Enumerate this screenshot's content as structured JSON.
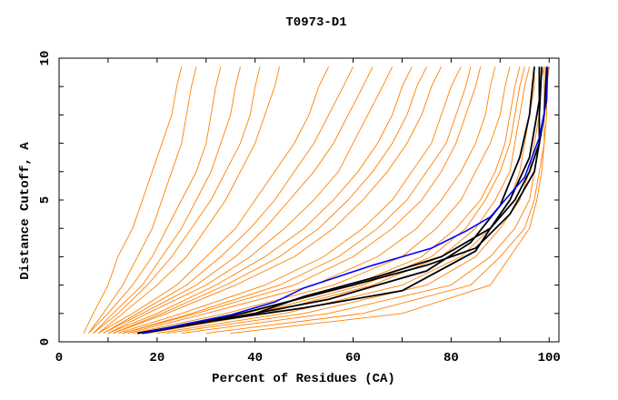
{
  "chart_data": {
    "type": "line",
    "title": "T0973-D1",
    "xlabel": "Percent of Residues (CA)",
    "ylabel": "Distance Cutoff, A",
    "xlim": [
      0,
      102
    ],
    "ylim": [
      0,
      10
    ],
    "x_ticks": [
      "0",
      "20",
      "40",
      "60",
      "80",
      "100"
    ],
    "y_ticks": [
      "0",
      "5",
      "10"
    ],
    "grid": false,
    "legend": "none",
    "colors": {
      "models": "#ff8000",
      "highlight_blue": "#0000ff",
      "highlight_black": "#000000"
    },
    "orange_y_levels": [
      0.3,
      1,
      2,
      3,
      4,
      5,
      6,
      7,
      8,
      9,
      9.7
    ],
    "orange_series_x": [
      [
        5,
        7,
        10,
        12,
        15,
        17,
        19,
        21,
        23,
        24,
        25
      ],
      [
        6,
        9,
        13,
        16,
        19,
        21,
        23,
        25,
        26,
        27,
        28
      ],
      [
        7,
        11,
        17,
        21,
        25,
        28,
        31,
        33,
        35,
        36,
        37
      ],
      [
        8,
        13,
        20,
        26,
        30,
        34,
        37,
        40,
        42,
        44,
        45
      ],
      [
        8,
        15,
        24,
        30,
        36,
        40,
        44,
        48,
        51,
        53,
        55
      ],
      [
        9,
        17,
        28,
        36,
        42,
        47,
        52,
        56,
        59,
        62,
        64
      ],
      [
        10,
        20,
        32,
        42,
        50,
        56,
        61,
        65,
        68,
        70,
        72
      ],
      [
        11,
        22,
        36,
        48,
        56,
        62,
        67,
        71,
        74,
        76,
        78
      ],
      [
        12,
        25,
        42,
        54,
        62,
        68,
        72,
        76,
        78,
        80,
        82
      ],
      [
        13,
        28,
        48,
        60,
        68,
        74,
        78,
        81,
        83,
        85,
        86
      ],
      [
        14,
        30,
        52,
        65,
        73,
        78,
        82,
        85,
        87,
        88,
        89
      ],
      [
        15,
        34,
        56,
        70,
        77,
        82,
        85,
        88,
        90,
        91,
        92
      ],
      [
        16,
        38,
        60,
        74,
        81,
        86,
        89,
        91,
        92,
        93,
        94
      ],
      [
        18,
        42,
        64,
        78,
        85,
        89,
        92,
        93,
        94,
        95,
        96
      ],
      [
        20,
        46,
        70,
        82,
        88,
        92,
        94,
        95,
        96,
        97,
        97
      ],
      [
        22,
        50,
        75,
        85,
        90,
        94,
        96,
        97,
        98,
        98,
        99
      ],
      [
        25,
        55,
        80,
        88,
        93,
        96,
        97,
        98,
        99,
        99,
        99
      ],
      [
        30,
        62,
        84,
        90,
        95,
        97,
        98,
        99,
        99,
        99.5,
        100
      ],
      [
        35,
        70,
        88,
        92,
        96,
        97.5,
        98.5,
        99,
        99.5,
        99.5,
        100
      ],
      [
        6,
        10,
        15,
        19,
        22,
        25,
        28,
        30,
        31,
        32,
        33
      ],
      [
        9,
        16,
        26,
        33,
        39,
        44,
        48,
        52,
        55,
        58,
        60
      ],
      [
        11,
        21,
        34,
        45,
        53,
        59,
        64,
        68,
        71,
        73,
        75
      ],
      [
        13,
        27,
        45,
        57,
        65,
        71,
        75,
        79,
        81,
        83,
        84
      ],
      [
        17,
        40,
        62,
        76,
        83,
        87,
        90,
        92,
        93,
        94,
        95
      ],
      [
        7,
        12,
        18,
        23,
        27,
        31,
        34,
        37,
        39,
        40,
        41
      ],
      [
        10,
        18,
        30,
        39,
        46,
        52,
        57,
        60,
        63,
        66,
        68
      ]
    ],
    "black_series": [
      [
        [
          16,
          0.3
        ],
        [
          30,
          0.7
        ],
        [
          50,
          1.2
        ],
        [
          70,
          1.8
        ],
        [
          85,
          3.2
        ],
        [
          88,
          4.0
        ],
        [
          92,
          5.0
        ],
        [
          96,
          6.5
        ],
        [
          98,
          8.5
        ],
        [
          98,
          9.7
        ]
      ],
      [
        [
          17,
          0.3
        ],
        [
          40,
          1.0
        ],
        [
          55,
          1.5
        ],
        [
          75,
          2.5
        ],
        [
          84,
          3.5
        ],
        [
          90,
          4.8
        ],
        [
          94,
          6.5
        ],
        [
          96,
          8
        ],
        [
          97,
          9.7
        ]
      ],
      [
        [
          17,
          0.3
        ],
        [
          40,
          1.0
        ],
        [
          50,
          1.6
        ],
        [
          65,
          2.3
        ],
        [
          78,
          3.0
        ],
        [
          88,
          4.0
        ],
        [
          93,
          5.0
        ],
        [
          96,
          6.0
        ],
        [
          98,
          7
        ],
        [
          98,
          8
        ],
        [
          98.5,
          9.7
        ]
      ],
      [
        [
          16,
          0.3
        ],
        [
          35,
          0.9
        ],
        [
          60,
          2.0
        ],
        [
          75,
          2.7
        ],
        [
          85,
          3.3
        ],
        [
          92,
          4.5
        ],
        [
          97,
          6
        ],
        [
          99,
          8
        ],
        [
          99.5,
          9.7
        ]
      ]
    ],
    "blue_series": [
      [
        17,
        0.3
      ],
      [
        25,
        0.6
      ],
      [
        35,
        0.95
      ],
      [
        44,
        1.4
      ],
      [
        50,
        1.9
      ],
      [
        57,
        2.3
      ],
      [
        64,
        2.7
      ],
      [
        70,
        3.0
      ],
      [
        76,
        3.3
      ],
      [
        83,
        3.9
      ],
      [
        88,
        4.4
      ],
      [
        91,
        5.0
      ],
      [
        95,
        5.8
      ],
      [
        98,
        7.2
      ],
      [
        99.5,
        8.5
      ],
      [
        99.7,
        9.7
      ]
    ]
  }
}
